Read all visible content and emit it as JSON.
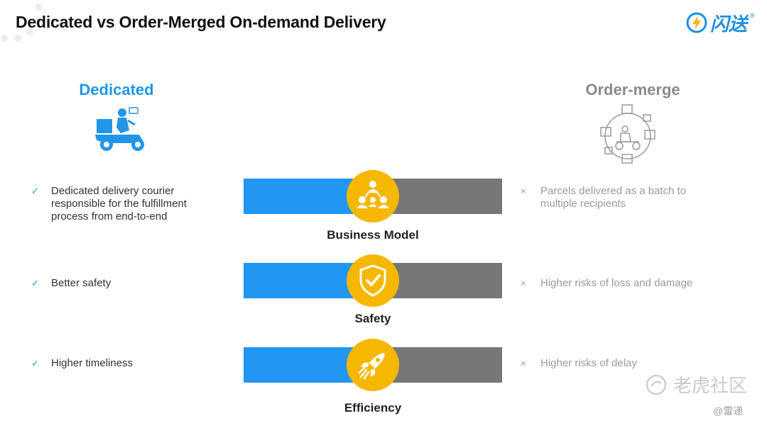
{
  "title": "Dedicated vs Order-Merged On-demand Delivery",
  "logo": {
    "text": "闪送",
    "reg": "®"
  },
  "columns": {
    "left": "Dedicated",
    "right": "Order-merge"
  },
  "rows": [
    {
      "label": "Business Model",
      "icon": "people-network-icon",
      "pro": [
        "Dedicated delivery courier",
        "responsible for the fulfillment",
        "process from end-to-end"
      ],
      "con": [
        "Parcels delivered as a batch to",
        "multiple recipients"
      ]
    },
    {
      "label": "Safety",
      "icon": "shield-check-icon",
      "pro": [
        "Better safety"
      ],
      "con": [
        "Higher risks of loss and damage"
      ]
    },
    {
      "label": "Efficiency",
      "icon": "rocket-icon",
      "pro": [
        "Higher timeliness"
      ],
      "con": [
        "Higher risks of delay"
      ]
    }
  ],
  "marks": {
    "pro": "✓",
    "con": "×"
  },
  "watermark": {
    "main": "老虎社区",
    "sub": "@雷递"
  },
  "colors": {
    "blue": "#2196f3",
    "gray": "#777777",
    "badge": "#f5b700",
    "accent": "#2196e8"
  }
}
